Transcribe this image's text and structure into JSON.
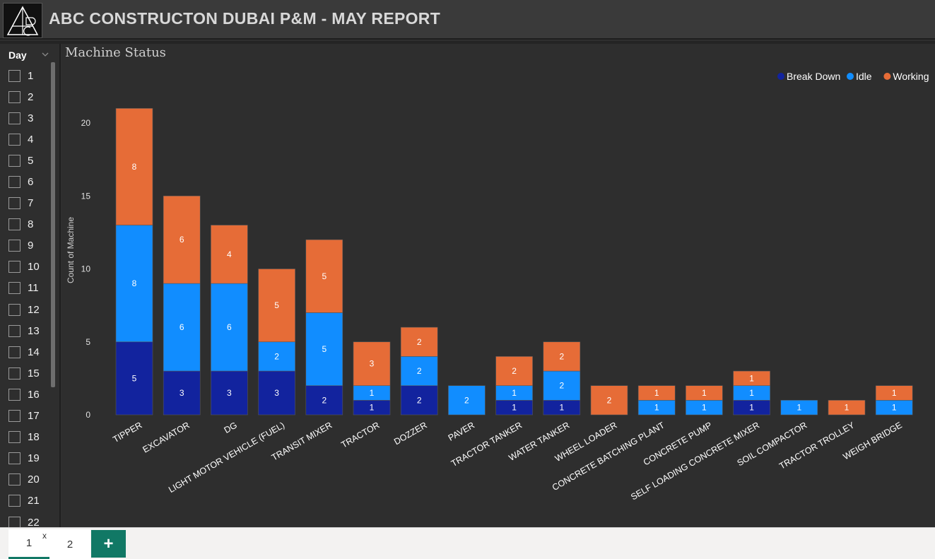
{
  "header": {
    "title": "ABC CONSTRUCTON DUBAI P&M - MAY REPORT",
    "logo_icon": "abc-logo-icon"
  },
  "slicer": {
    "title": "Day",
    "chevron_icon": "chevron-down-icon",
    "items": [
      "1",
      "2",
      "3",
      "4",
      "5",
      "6",
      "7",
      "8",
      "9",
      "10",
      "11",
      "12",
      "13",
      "14",
      "15",
      "16",
      "17",
      "18",
      "19",
      "20",
      "21",
      "22"
    ]
  },
  "chart": {
    "title": "Machine Status"
  },
  "chart_data": {
    "type": "bar",
    "stacked": true,
    "title": "Machine Status",
    "ylabel": "Count of Machine",
    "xlabel": "",
    "ylim": [
      0,
      21
    ],
    "yticks": [
      0,
      5,
      10,
      15,
      20
    ],
    "legend_position": "top-right",
    "grid": false,
    "categories": [
      "TIPPER",
      "EXCAVATOR",
      "DG",
      "LIGHT MOTOR VEHICLE (FUEL)",
      "TRANSIT MIXER",
      "TRACTOR",
      "DOZZER",
      "PAVER",
      "TRACTOR TANKER",
      "WATER TANKER",
      "WHEEL LOADER",
      "CONCRETE BATCHING PLANT",
      "CONCRETE PUMP",
      "SELF LOADING CONCRETE MIXER",
      "SOIL COMPACTOR",
      "TRACTOR TROLLEY",
      "WEIGH BRIDGE"
    ],
    "series": [
      {
        "name": "Break Down",
        "color": "#12239e",
        "values": [
          5,
          3,
          3,
          3,
          2,
          1,
          2,
          0,
          1,
          1,
          0,
          0,
          0,
          1,
          0,
          0,
          0
        ]
      },
      {
        "name": "Idle",
        "color": "#118dff",
        "values": [
          8,
          6,
          6,
          2,
          5,
          1,
          2,
          2,
          1,
          2,
          0,
          1,
          1,
          1,
          1,
          0,
          1
        ]
      },
      {
        "name": "Working",
        "color": "#e66c37",
        "values": [
          8,
          6,
          4,
          5,
          5,
          3,
          2,
          0,
          2,
          2,
          2,
          1,
          1,
          1,
          0,
          1,
          1
        ]
      }
    ]
  },
  "tabs": [
    {
      "label": "1",
      "close": "x"
    },
    {
      "label": "2"
    }
  ],
  "tab_add": {
    "label": "+",
    "icon": "plus-icon"
  }
}
